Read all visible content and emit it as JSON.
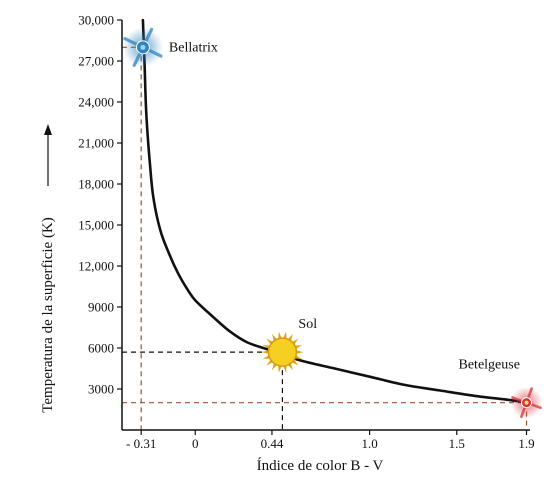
{
  "chart_data": {
    "type": "line",
    "xlabel": "Índice de color B - V",
    "ylabel": "Temperatura de la superficie (K)",
    "x_ticks": [
      "- 0.31",
      "0",
      "0.44",
      "1.0",
      "1.5",
      "1.9"
    ],
    "x_tick_values": [
      -0.31,
      0,
      0.44,
      1.0,
      1.5,
      1.9
    ],
    "y_ticks": [
      "3000",
      "6000",
      "9000",
      "12,000",
      "15,000",
      "18,000",
      "21,000",
      "24,000",
      "27,000",
      "30,000"
    ],
    "y_tick_values": [
      3000,
      6000,
      9000,
      12000,
      15000,
      18000,
      21000,
      24000,
      27000,
      30000
    ],
    "xlim": [
      -0.42,
      1.92
    ],
    "ylim": [
      0,
      30000
    ],
    "grid": false,
    "curve": {
      "x": [
        -0.3,
        -0.29,
        -0.28,
        -0.26,
        -0.24,
        -0.2,
        -0.15,
        -0.1,
        -0.05,
        0.0,
        0.1,
        0.2,
        0.3,
        0.44,
        0.6,
        0.8,
        1.0,
        1.2,
        1.4,
        1.6,
        1.8,
        1.9
      ],
      "y": [
        30000,
        26500,
        23000,
        19500,
        17000,
        14600,
        12900,
        11500,
        10400,
        9500,
        8300,
        7200,
        6400,
        5800,
        5100,
        4500,
        3900,
        3300,
        2900,
        2500,
        2200,
        2000
      ]
    },
    "stars": [
      {
        "name": "Bellatrix",
        "x": -0.3,
        "y": 28000,
        "color": "#2f83bf"
      },
      {
        "name": "Sol",
        "x": 0.5,
        "y": 5700,
        "color": "#f2c21a"
      },
      {
        "name": "Betelgeuse",
        "x": 1.9,
        "y": 2000,
        "color": "#d8313a"
      }
    ],
    "guides": [
      {
        "x": -0.31,
        "y": 28000,
        "color": "#a0522d"
      },
      {
        "x": 0.5,
        "y": 5700,
        "color": "#111111"
      },
      {
        "x": 1.9,
        "y": 2000,
        "color": "#a0522d"
      }
    ]
  }
}
